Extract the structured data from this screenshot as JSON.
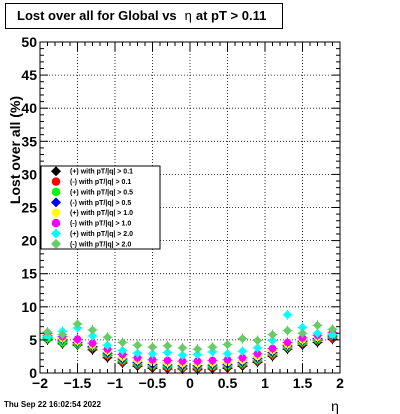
{
  "title": {
    "prefix": "Lost over all for Global vs",
    "symbol": "η",
    "suffix": "at pT > 0.11"
  },
  "datestamp": "Thu Sep 22 16:02:54 2022",
  "chart_data": {
    "type": "scatter",
    "ylabel": "Lost over all (%)",
    "xlabel": "η",
    "xlim": [
      -2,
      2
    ],
    "ylim": [
      0,
      50
    ],
    "x_ticks": [
      "−2",
      "−1.5",
      "−1",
      "−0.5",
      "0",
      "0.5",
      "1",
      "1.5",
      "2"
    ],
    "y_ticks": [
      "0",
      "5",
      "10",
      "15",
      "20",
      "25",
      "30",
      "35",
      "40",
      "45",
      "50"
    ],
    "grid": true,
    "legend_position": "left",
    "series": [
      {
        "name": "(+) with pT/|q| > 0.1",
        "color": "#000000",
        "marker": "diamond",
        "x": [
          -1.9,
          -1.7,
          -1.5,
          -1.3,
          -1.1,
          -0.9,
          -0.7,
          -0.5,
          -0.3,
          -0.1,
          0.1,
          0.3,
          0.5,
          0.7,
          0.9,
          1.1,
          1.3,
          1.5,
          1.7,
          1.9
        ],
        "y": [
          5.0,
          4.4,
          4.2,
          3.5,
          2.3,
          1.5,
          1.0,
          0.7,
          0.6,
          0.6,
          0.5,
          0.6,
          0.7,
          1.0,
          1.6,
          2.5,
          3.6,
          4.2,
          4.6,
          5.1
        ]
      },
      {
        "name": "(-) with pT/|q| > 0.1",
        "color": "#ff0000",
        "marker": "circle",
        "x": [
          -1.9,
          -1.7,
          -1.5,
          -1.3,
          -1.1,
          -0.9,
          -0.7,
          -0.5,
          -0.3,
          -0.1,
          0.1,
          0.3,
          0.5,
          0.7,
          0.9,
          1.1,
          1.3,
          1.5,
          1.7,
          1.9
        ],
        "y": [
          5.4,
          4.8,
          4.3,
          3.8,
          2.6,
          1.7,
          1.2,
          0.9,
          0.8,
          0.7,
          0.7,
          0.8,
          0.9,
          1.2,
          1.8,
          2.7,
          3.9,
          4.5,
          4.9,
          5.3
        ]
      },
      {
        "name": "(+) with pT/|q| > 0.5",
        "color": "#00ff00",
        "marker": "circle",
        "x": [
          -1.9,
          -1.7,
          -1.5,
          -1.3,
          -1.1,
          -0.9,
          -0.7,
          -0.5,
          -0.3,
          -0.1,
          0.1,
          0.3,
          0.5,
          0.7,
          0.9,
          1.1,
          1.3,
          1.5,
          1.7,
          1.9
        ],
        "y": [
          5.2,
          4.6,
          4.4,
          3.9,
          2.8,
          1.9,
          1.4,
          1.1,
          1.0,
          0.9,
          0.9,
          1.0,
          1.1,
          1.4,
          2.0,
          2.9,
          3.9,
          4.6,
          5.0,
          5.5
        ]
      },
      {
        "name": "(-) with pT/|q| > 0.5",
        "color": "#0000ff",
        "marker": "diamond",
        "x": [
          -1.9,
          -1.7,
          -1.5,
          -1.3,
          -1.1,
          -0.9,
          -0.7,
          -0.5,
          -0.3,
          -0.1,
          0.1,
          0.3,
          0.5,
          0.7,
          0.9,
          1.1,
          1.3,
          1.5,
          1.7,
          1.9
        ],
        "y": [
          5.6,
          5.0,
          4.6,
          4.0,
          3.0,
          2.1,
          1.6,
          1.3,
          1.2,
          1.1,
          1.1,
          1.2,
          1.3,
          1.6,
          2.2,
          3.1,
          4.1,
          4.8,
          5.2,
          5.6
        ]
      },
      {
        "name": "(+) with pT/|q| > 1.0",
        "color": "#ffff00",
        "marker": "circle",
        "x": [
          -1.9,
          -1.7,
          -1.5,
          -1.3,
          -1.1,
          -0.9,
          -0.7,
          -0.5,
          -0.3,
          -0.1,
          0.1,
          0.3,
          0.5,
          0.7,
          0.9,
          1.1,
          1.3,
          1.5,
          1.7,
          1.9
        ],
        "y": [
          5.8,
          5.2,
          4.8,
          4.2,
          3.3,
          2.4,
          1.9,
          1.6,
          1.5,
          1.4,
          1.4,
          1.5,
          1.6,
          1.9,
          2.5,
          3.4,
          4.3,
          5.0,
          5.4,
          5.8
        ]
      },
      {
        "name": "(-) with pT/|q| > 1.0",
        "color": "#ff00ff",
        "marker": "circle",
        "x": [
          -1.9,
          -1.7,
          -1.5,
          -1.3,
          -1.1,
          -0.9,
          -0.7,
          -0.5,
          -0.3,
          -0.1,
          0.1,
          0.3,
          0.5,
          0.7,
          0.9,
          1.1,
          1.3,
          1.5,
          1.7,
          1.9
        ],
        "y": [
          6.0,
          5.5,
          5.1,
          4.5,
          3.6,
          2.8,
          2.3,
          2.0,
          1.9,
          1.8,
          1.8,
          1.9,
          2.0,
          2.3,
          2.9,
          3.7,
          4.6,
          5.3,
          5.7,
          6.1
        ]
      },
      {
        "name": "(+) with pT/|q| > 2.0",
        "color": "#00ffff",
        "marker": "diamond",
        "x": [
          -1.9,
          -1.7,
          -1.5,
          -1.3,
          -1.1,
          -0.9,
          -0.7,
          -0.5,
          -0.3,
          -0.1,
          0.1,
          0.3,
          0.5,
          0.7,
          0.9,
          1.1,
          1.3,
          1.5,
          1.7,
          1.9
        ],
        "y": [
          5.5,
          6.3,
          6.8,
          5.6,
          4.2,
          3.4,
          3.0,
          2.9,
          3.1,
          2.7,
          2.8,
          3.2,
          2.9,
          3.3,
          3.8,
          4.9,
          8.8,
          6.9,
          6.0,
          5.8
        ]
      },
      {
        "name": "(-) with pT/|q| > 2.0",
        "color": "#66cc66",
        "marker": "diamond",
        "x": [
          -1.9,
          -1.7,
          -1.5,
          -1.3,
          -1.1,
          -0.9,
          -0.7,
          -0.5,
          -0.3,
          -0.1,
          0.1,
          0.3,
          0.5,
          0.7,
          0.9,
          1.1,
          1.3,
          1.5,
          1.7,
          1.9
        ],
        "y": [
          6.2,
          5.8,
          7.4,
          6.5,
          5.4,
          4.6,
          4.2,
          3.9,
          4.1,
          3.8,
          3.6,
          3.9,
          4.3,
          5.2,
          4.9,
          5.8,
          6.4,
          6.0,
          7.2,
          6.6
        ]
      }
    ]
  }
}
